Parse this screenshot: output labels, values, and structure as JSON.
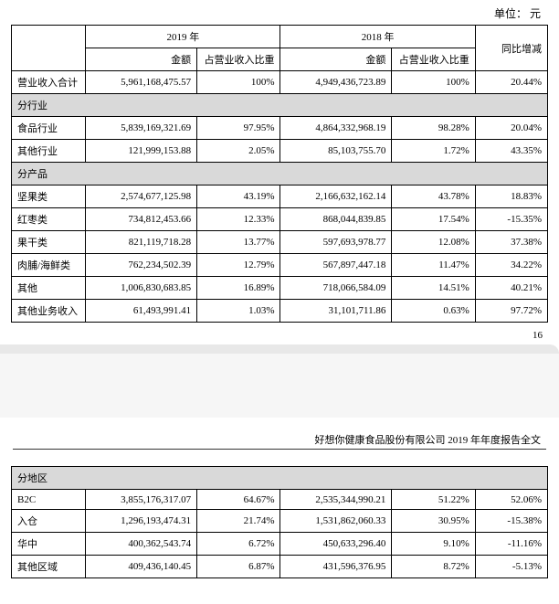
{
  "unit_label": "单位：  元",
  "page_number": "16",
  "report_title": "好想你健康食品股份有限公司 2019 年年度报告全文",
  "table1": {
    "headers": {
      "blank": "",
      "y2019": "2019 年",
      "y2018": "2018 年",
      "amount": "金额",
      "ratio": "占营业收入比重",
      "yoy": "同比增减"
    },
    "total_row": {
      "label": "营业收入合计",
      "amt19": "5,961,168,475.57",
      "pct19": "100%",
      "amt18": "4,949,436,723.89",
      "pct18": "100%",
      "chg": "20.44%"
    },
    "section1_label": "分行业",
    "section1_rows": [
      {
        "label": "食品行业",
        "amt19": "5,839,169,321.69",
        "pct19": "97.95%",
        "amt18": "4,864,332,968.19",
        "pct18": "98.28%",
        "chg": "20.04%"
      },
      {
        "label": "其他行业",
        "amt19": "121,999,153.88",
        "pct19": "2.05%",
        "amt18": "85,103,755.70",
        "pct18": "1.72%",
        "chg": "43.35%"
      }
    ],
    "section2_label": "分产品",
    "section2_rows": [
      {
        "label": "坚果类",
        "amt19": "2,574,677,125.98",
        "pct19": "43.19%",
        "amt18": "2,166,632,162.14",
        "pct18": "43.78%",
        "chg": "18.83%"
      },
      {
        "label": "红枣类",
        "amt19": "734,812,453.66",
        "pct19": "12.33%",
        "amt18": "868,044,839.85",
        "pct18": "17.54%",
        "chg": "-15.35%"
      },
      {
        "label": "果干类",
        "amt19": "821,119,718.28",
        "pct19": "13.77%",
        "amt18": "597,693,978.77",
        "pct18": "12.08%",
        "chg": "37.38%"
      },
      {
        "label": "肉脯/海鲜类",
        "amt19": "762,234,502.39",
        "pct19": "12.79%",
        "amt18": "567,897,447.18",
        "pct18": "11.47%",
        "chg": "34.22%"
      },
      {
        "label": "其他",
        "amt19": "1,006,830,683.85",
        "pct19": "16.89%",
        "amt18": "718,066,584.09",
        "pct18": "14.51%",
        "chg": "40.21%"
      },
      {
        "label": "其他业务收入",
        "amt19": "61,493,991.41",
        "pct19": "1.03%",
        "amt18": "31,101,711.86",
        "pct18": "0.63%",
        "chg": "97.72%"
      }
    ]
  },
  "table2": {
    "section_label": "分地区",
    "rows": [
      {
        "label": "B2C",
        "amt19": "3,855,176,317.07",
        "pct19": "64.67%",
        "amt18": "2,535,344,990.21",
        "pct18": "51.22%",
        "chg": "52.06%"
      },
      {
        "label": "入仓",
        "amt19": "1,296,193,474.31",
        "pct19": "21.74%",
        "amt18": "1,531,862,060.33",
        "pct18": "30.95%",
        "chg": "-15.38%"
      },
      {
        "label": "华中",
        "amt19": "400,362,543.74",
        "pct19": "6.72%",
        "amt18": "450,633,296.40",
        "pct18": "9.10%",
        "chg": "-11.16%"
      },
      {
        "label": "其他区域",
        "amt19": "409,436,140.45",
        "pct19": "6.87%",
        "amt18": "431,596,376.95",
        "pct18": "8.72%",
        "chg": "-5.13%"
      }
    ]
  }
}
